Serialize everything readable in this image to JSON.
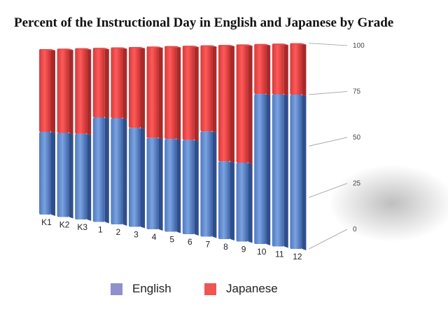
{
  "chart_data": {
    "type": "bar",
    "stacked": true,
    "three_d": true,
    "title": "Percent of the Instructional Day in English and Japanese by Grade",
    "xlabel": "",
    "ylabel": "",
    "categories": [
      "K1",
      "K2",
      "K3",
      "1",
      "2",
      "3",
      "4",
      "5",
      "6",
      "7",
      "8",
      "9",
      "10",
      "11",
      "12"
    ],
    "series": [
      {
        "name": "English",
        "values": [
          50,
          50,
          50,
          60,
          60,
          55,
          50,
          50,
          50,
          55,
          40,
          40,
          75,
          75,
          75
        ]
      },
      {
        "name": "Japanese",
        "values": [
          50,
          50,
          50,
          40,
          40,
          45,
          50,
          50,
          50,
          45,
          60,
          60,
          25,
          25,
          25
        ]
      }
    ],
    "ylim": [
      0,
      100
    ],
    "yticks": [
      "0",
      "25",
      "50",
      "75",
      "100"
    ],
    "legend_position": "bottom",
    "colors": {
      "English": "#6f97d6",
      "Japanese": "#f04747",
      "english_legend": "#9090cc",
      "japanese_legend": "#f05555"
    }
  }
}
